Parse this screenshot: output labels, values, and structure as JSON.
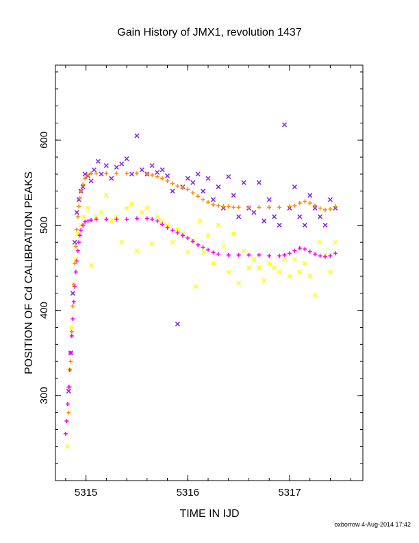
{
  "chart_data": {
    "type": "scatter",
    "title": "Gain History of JMX1, revolution 1437",
    "xlabel": "TIME IN IJD",
    "ylabel": "POSITION OF Cd CALIBRATION PEAKS",
    "xlim": [
      5314.7,
      5317.72
    ],
    "ylim": [
      200,
      688
    ],
    "x_ticks": [
      5315,
      5316,
      5317
    ],
    "y_ticks": [
      300,
      400,
      500,
      600
    ],
    "grid": false,
    "legend": "none",
    "footer": "oxborrow  4-Aug-2014 17:42",
    "series": [
      {
        "marker": "cross",
        "color": "#8a2be2",
        "x": [
          5314.83,
          5314.85,
          5314.87,
          5314.89,
          5314.91,
          5314.93,
          5314.95,
          5314.97,
          5314.99,
          5315.02,
          5315.05,
          5315.08,
          5315.12,
          5315.15,
          5315.2,
          5315.25,
          5315.3,
          5315.35,
          5315.4,
          5315.45,
          5315.5,
          5315.55,
          5315.6,
          5315.65,
          5315.7,
          5315.75,
          5315.8,
          5315.85,
          5315.9,
          5315.95,
          5316.0,
          5316.05,
          5316.1,
          5316.15,
          5316.2,
          5316.25,
          5316.3,
          5316.35,
          5316.4,
          5316.45,
          5316.5,
          5316.55,
          5316.6,
          5316.65,
          5316.7,
          5316.75,
          5316.8,
          5316.85,
          5316.9,
          5316.95,
          5317.0,
          5317.05,
          5317.1,
          5317.15,
          5317.2,
          5317.25,
          5317.3,
          5317.35,
          5317.4,
          5317.45
        ],
        "y": [
          305,
          350,
          420,
          480,
          515,
          530,
          540,
          545,
          560,
          558,
          552,
          565,
          575,
          560,
          570,
          555,
          568,
          572,
          578,
          560,
          605,
          565,
          560,
          570,
          562,
          565,
          558,
          540,
          384,
          545,
          555,
          550,
          560,
          540,
          555,
          530,
          545,
          520,
          557,
          535,
          510,
          550,
          520,
          515,
          550,
          505,
          530,
          510,
          500,
          618,
          520,
          545,
          510,
          500,
          535,
          520,
          510,
          500,
          530,
          520
        ]
      },
      {
        "marker": "cross",
        "color": "#ffff00",
        "x": [
          5314.82,
          5314.84,
          5314.86,
          5314.88,
          5314.9,
          5314.92,
          5314.95,
          5314.98,
          5315.02,
          5315.05,
          5315.1,
          5315.15,
          5315.2,
          5315.25,
          5315.3,
          5315.35,
          5315.4,
          5315.45,
          5315.5,
          5315.55,
          5315.6,
          5315.65,
          5315.7,
          5315.75,
          5315.8,
          5315.85,
          5315.9,
          5315.95,
          5316.0,
          5316.05,
          5316.08,
          5316.12,
          5316.16,
          5316.2,
          5316.25,
          5316.3,
          5316.35,
          5316.4,
          5316.45,
          5316.5,
          5316.55,
          5316.6,
          5316.65,
          5316.7,
          5316.75,
          5316.8,
          5316.85,
          5316.9,
          5316.95,
          5317.0,
          5317.05,
          5317.1,
          5317.15,
          5317.2,
          5317.25,
          5317.3,
          5317.35,
          5317.4,
          5317.45
        ],
        "y": [
          240,
          330,
          380,
          430,
          460,
          490,
          500,
          510,
          520,
          453,
          510,
          515,
          535,
          505,
          510,
          480,
          520,
          525,
          470,
          515,
          520,
          478,
          510,
          505,
          500,
          480,
          495,
          490,
          468,
          482,
          428,
          505,
          468,
          488,
          455,
          500,
          475,
          445,
          490,
          432,
          470,
          450,
          460,
          450,
          435,
          455,
          450,
          445,
          460,
          440,
          460,
          445,
          455,
          440,
          418,
          480,
          465,
          445,
          480
        ]
      },
      {
        "marker": "plus",
        "color": "#ff8c00",
        "x": [
          5314.83,
          5314.84,
          5314.85,
          5314.86,
          5314.87,
          5314.88,
          5314.89,
          5314.9,
          5314.91,
          5314.92,
          5314.93,
          5314.94,
          5314.95,
          5314.97,
          5314.99,
          5315.02,
          5315.05,
          5315.1,
          5315.2,
          5315.3,
          5315.4,
          5315.5,
          5315.6,
          5315.65,
          5315.7,
          5315.75,
          5315.8,
          5315.85,
          5315.9,
          5315.95,
          5316.0,
          5316.05,
          5316.1,
          5316.15,
          5316.2,
          5316.25,
          5316.3,
          5316.35,
          5316.4,
          5316.45,
          5316.5,
          5316.6,
          5316.7,
          5316.8,
          5316.9,
          5317.0,
          5317.05,
          5317.1,
          5317.15,
          5317.2,
          5317.25,
          5317.3,
          5317.35,
          5317.4,
          5317.45
        ],
        "y": [
          280,
          310,
          340,
          375,
          405,
          430,
          455,
          475,
          495,
          510,
          522,
          532,
          540,
          548,
          555,
          559,
          561,
          561,
          561,
          561,
          561,
          561,
          560,
          559,
          557,
          555,
          552,
          549,
          546,
          544,
          542,
          538,
          534,
          530,
          527,
          524,
          523,
          522,
          522,
          521,
          521,
          521,
          521,
          521,
          521,
          522,
          523,
          526,
          528,
          526,
          523,
          520,
          518,
          519,
          522
        ]
      },
      {
        "marker": "plus",
        "color": "#ff00ff",
        "x": [
          5314.8,
          5314.81,
          5314.82,
          5314.83,
          5314.84,
          5314.85,
          5314.86,
          5314.87,
          5314.88,
          5314.89,
          5314.9,
          5314.91,
          5314.92,
          5314.93,
          5314.94,
          5314.95,
          5314.97,
          5314.99,
          5315.02,
          5315.05,
          5315.1,
          5315.2,
          5315.3,
          5315.4,
          5315.5,
          5315.6,
          5315.65,
          5315.7,
          5315.75,
          5315.8,
          5315.85,
          5315.9,
          5315.95,
          5316.0,
          5316.05,
          5316.1,
          5316.15,
          5316.2,
          5316.25,
          5316.3,
          5316.4,
          5316.5,
          5316.6,
          5316.7,
          5316.8,
          5316.9,
          5316.95,
          5317.0,
          5317.05,
          5317.1,
          5317.15,
          5317.2,
          5317.25,
          5317.3,
          5317.35,
          5317.4,
          5317.45
        ],
        "y": [
          255,
          270,
          290,
          310,
          330,
          350,
          370,
          390,
          410,
          428,
          445,
          458,
          470,
          480,
          488,
          494,
          500,
          504,
          505,
          506,
          507,
          507,
          507,
          507,
          508,
          508,
          507,
          505,
          501,
          497,
          494,
          491,
          488,
          485,
          481,
          477,
          474,
          471,
          468,
          466,
          465,
          465,
          465,
          465,
          464,
          464,
          465,
          467,
          470,
          473,
          472,
          469,
          466,
          464,
          463,
          464,
          467
        ]
      }
    ]
  }
}
